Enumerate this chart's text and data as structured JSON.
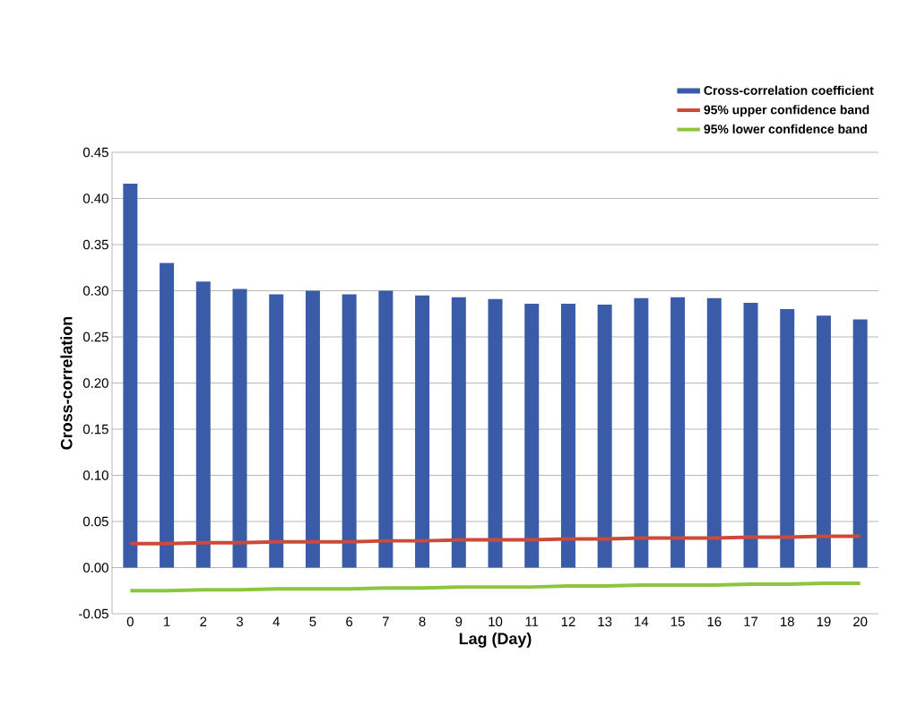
{
  "chart_data": {
    "type": "bar",
    "xlabel": "Lag (Day)",
    "ylabel": "Cross-correlation",
    "categories": [
      "0",
      "1",
      "2",
      "3",
      "4",
      "5",
      "6",
      "7",
      "8",
      "9",
      "10",
      "11",
      "12",
      "13",
      "14",
      "15",
      "16",
      "17",
      "18",
      "19",
      "20"
    ],
    "series": [
      {
        "name": "Cross-correlation coefficient",
        "color": "#3a5ca8",
        "values": [
          0.416,
          0.33,
          0.31,
          0.302,
          0.296,
          0.3,
          0.296,
          0.3,
          0.295,
          0.293,
          0.291,
          0.286,
          0.286,
          0.285,
          0.292,
          0.293,
          0.292,
          0.287,
          0.28,
          0.273,
          0.269
        ]
      },
      {
        "name": "95% upper confidence band",
        "type": "line",
        "color": "#cc4a3a",
        "values": [
          0.026,
          0.026,
          0.027,
          0.027,
          0.028,
          0.028,
          0.028,
          0.029,
          0.029,
          0.03,
          0.03,
          0.03,
          0.031,
          0.031,
          0.032,
          0.032,
          0.032,
          0.033,
          0.033,
          0.034,
          0.034
        ]
      },
      {
        "name": "95% lower confidence band",
        "type": "line",
        "color": "#8cc63f",
        "values": [
          -0.025,
          -0.025,
          -0.024,
          -0.024,
          -0.023,
          -0.023,
          -0.023,
          -0.022,
          -0.022,
          -0.021,
          -0.021,
          -0.021,
          -0.02,
          -0.02,
          -0.019,
          -0.019,
          -0.019,
          -0.018,
          -0.018,
          -0.017,
          -0.017
        ]
      }
    ],
    "ylim": [
      -0.05,
      0.45
    ],
    "yticks": [
      {
        "value": -0.05,
        "label": "-0.05"
      },
      {
        "value": 0,
        "label": "0.00"
      },
      {
        "value": 0.05,
        "label": "0.05"
      },
      {
        "value": 0.1,
        "label": "0.10"
      },
      {
        "value": 0.15,
        "label": "0.15"
      },
      {
        "value": 0.2,
        "label": "0.20"
      },
      {
        "value": 0.25,
        "label": "0.25"
      },
      {
        "value": 0.3,
        "label": "0.30"
      },
      {
        "value": 0.35,
        "label": "0.35"
      },
      {
        "value": 0.4,
        "label": "0.40"
      },
      {
        "value": 0.45,
        "label": "0.45"
      }
    ],
    "grid": "y",
    "legend": "top right"
  }
}
